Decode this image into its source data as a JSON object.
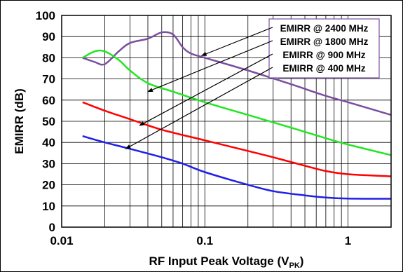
{
  "chart_data": {
    "type": "line",
    "xlabel_main": "RF Input Peak Voltage (V",
    "xlabel_sub": "PK",
    "xlabel_tail": ")",
    "ylabel": "EMIRR (dB)",
    "x_scale": "log",
    "xlim": [
      0.01,
      2
    ],
    "ylim": [
      0,
      100
    ],
    "x_ticks": [
      {
        "value": 0.01,
        "label": "0.01"
      },
      {
        "value": 0.1,
        "label": "0.1"
      },
      {
        "value": 1,
        "label": "1"
      }
    ],
    "y_ticks": [
      {
        "value": 0,
        "label": "0"
      },
      {
        "value": 10,
        "label": "10"
      },
      {
        "value": 20,
        "label": "20"
      },
      {
        "value": 30,
        "label": "30"
      },
      {
        "value": 40,
        "label": "40"
      },
      {
        "value": 50,
        "label": "50"
      },
      {
        "value": 60,
        "label": "60"
      },
      {
        "value": 70,
        "label": "70"
      },
      {
        "value": 80,
        "label": "80"
      },
      {
        "value": 90,
        "label": "90"
      },
      {
        "value": 100,
        "label": "100"
      }
    ],
    "grid": true,
    "legend_position": "top-right",
    "series": [
      {
        "name": "EMIRR @ 2400 MHz",
        "color": "#7a4fa0",
        "points": [
          [
            0.014,
            80
          ],
          [
            0.017,
            78
          ],
          [
            0.02,
            77
          ],
          [
            0.025,
            83
          ],
          [
            0.03,
            87
          ],
          [
            0.04,
            89
          ],
          [
            0.05,
            92
          ],
          [
            0.06,
            91
          ],
          [
            0.07,
            85
          ],
          [
            0.08,
            82
          ],
          [
            0.1,
            80
          ],
          [
            0.2,
            74
          ],
          [
            0.4,
            67.5
          ],
          [
            0.7,
            62
          ],
          [
            1,
            59
          ],
          [
            2,
            53
          ]
        ]
      },
      {
        "name": "EMIRR @ 1800 MHz",
        "color": "#22e622",
        "points": [
          [
            0.014,
            80
          ],
          [
            0.017,
            83
          ],
          [
            0.02,
            83
          ],
          [
            0.025,
            79
          ],
          [
            0.03,
            74
          ],
          [
            0.04,
            68
          ],
          [
            0.06,
            64
          ],
          [
            0.1,
            59
          ],
          [
            0.2,
            53
          ],
          [
            0.4,
            47
          ],
          [
            0.7,
            42
          ],
          [
            1,
            39
          ],
          [
            2,
            34
          ]
        ]
      },
      {
        "name": "EMIRR @ 900 MHz",
        "color": "#ff0000",
        "points": [
          [
            0.014,
            59
          ],
          [
            0.02,
            55
          ],
          [
            0.03,
            51
          ],
          [
            0.05,
            46
          ],
          [
            0.1,
            41
          ],
          [
            0.2,
            36
          ],
          [
            0.3,
            33
          ],
          [
            0.5,
            29
          ],
          [
            0.7,
            26.5
          ],
          [
            1,
            25
          ],
          [
            2,
            24
          ]
        ]
      },
      {
        "name": "EMIRR @ 400 MHz",
        "color": "#1f1fe8",
        "points": [
          [
            0.014,
            43
          ],
          [
            0.02,
            40
          ],
          [
            0.03,
            37
          ],
          [
            0.05,
            33
          ],
          [
            0.07,
            30
          ],
          [
            0.1,
            26
          ],
          [
            0.2,
            20
          ],
          [
            0.3,
            17
          ],
          [
            0.5,
            15
          ],
          [
            0.7,
            14
          ],
          [
            1,
            13.5
          ],
          [
            2,
            13.4
          ]
        ]
      }
    ],
    "annotations": [
      {
        "series_index": 0,
        "arrow_to": [
          0.095,
          81
        ]
      },
      {
        "series_index": 1,
        "arrow_to": [
          0.04,
          64
        ]
      },
      {
        "series_index": 2,
        "arrow_to": [
          0.035,
          48
        ]
      },
      {
        "series_index": 3,
        "arrow_to": [
          0.028,
          37
        ]
      }
    ]
  }
}
